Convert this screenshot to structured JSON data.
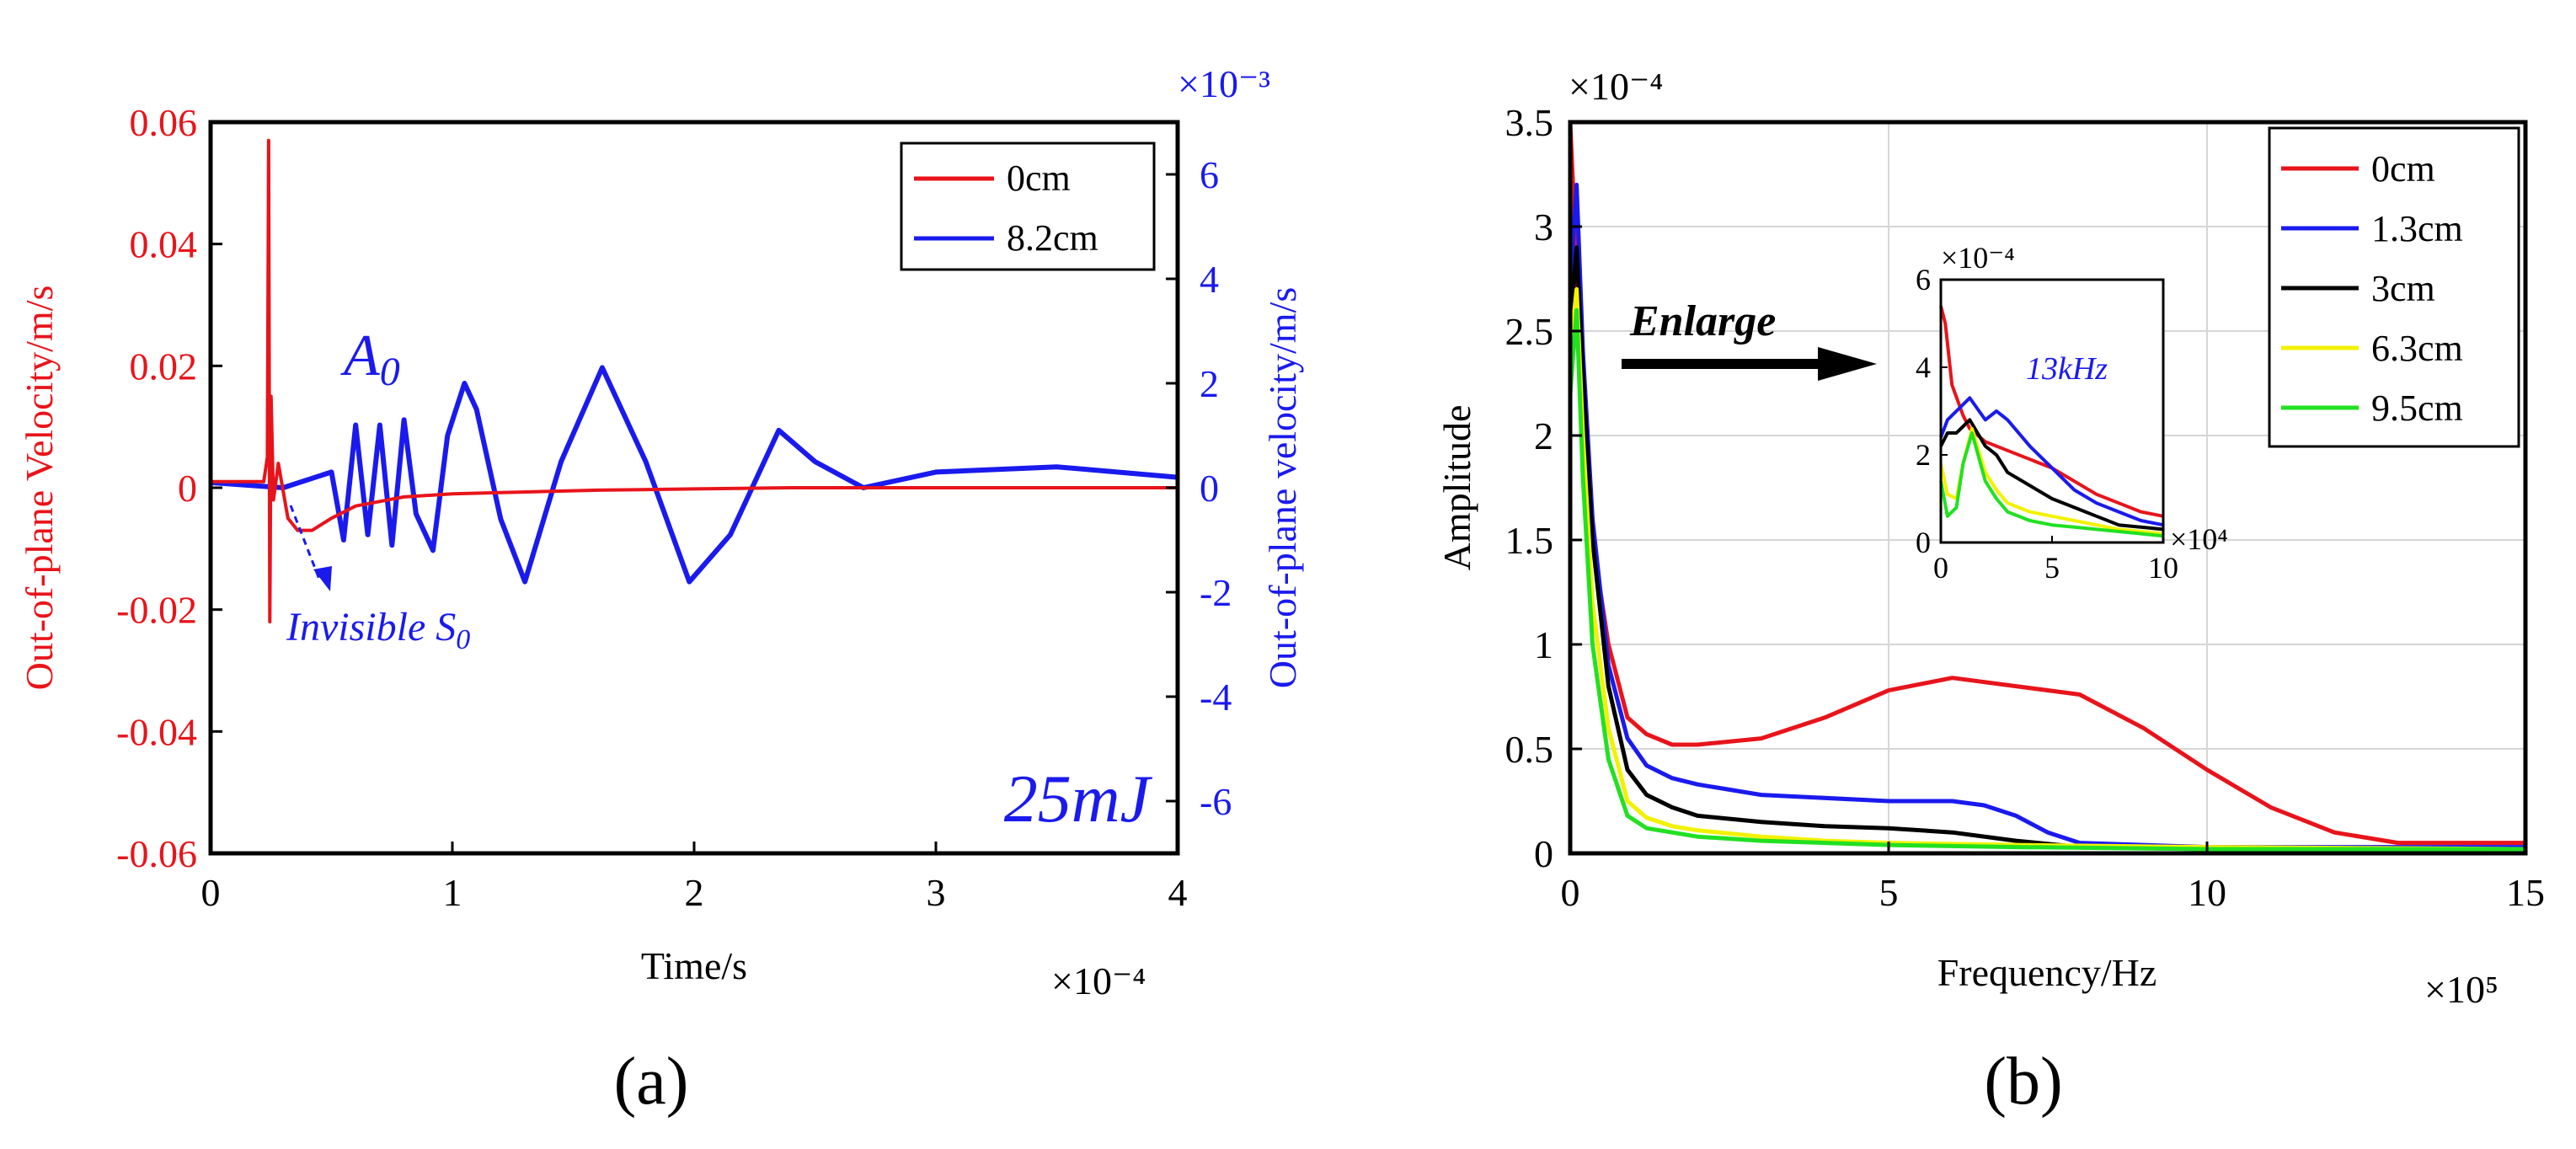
{
  "figure": {
    "panel_a_caption": "(a)",
    "panel_b_caption": "(b)"
  },
  "chart_data": [
    {
      "id": "a",
      "type": "line",
      "xlabel": "Time/s",
      "x_exponent": "×10⁻⁴",
      "xlim": [
        0,
        4
      ],
      "xticks": [
        0,
        1,
        2,
        3,
        4
      ],
      "ylabel_left": "Out-of-plane Velocity/m/s",
      "ylim_left": [
        -0.06,
        0.06
      ],
      "yticks_left": [
        "-0.06",
        "-0.04",
        "-0.02",
        "0",
        "0.02",
        "0.04",
        "0.06"
      ],
      "ylabel_right": "Out-of-plane velocity/m/s",
      "y_right_exponent": "×10⁻³",
      "ylim_right": [
        -7,
        7
      ],
      "yticks_right": [
        -6,
        -4,
        -2,
        0,
        2,
        4,
        6
      ],
      "legend_position": "top-right",
      "colors": {
        "left_axis": "#e8141b",
        "right_axis": "#1a1aee"
      },
      "series": [
        {
          "name": "0cm",
          "color": "#e8141b",
          "axis": "left",
          "x": [
            0,
            0.22,
            0.235,
            0.24,
            0.245,
            0.25,
            0.26,
            0.28,
            0.32,
            0.36,
            0.42,
            0.5,
            0.6,
            0.8,
            1.0,
            1.2,
            1.6,
            2.0,
            2.4,
            3.0,
            4.0
          ],
          "y": [
            0.001,
            0.001,
            0.005,
            0.057,
            -0.022,
            0.015,
            -0.002,
            0.004,
            -0.005,
            -0.007,
            -0.007,
            -0.005,
            -0.003,
            -0.0015,
            -0.001,
            -0.0008,
            -0.0004,
            -0.0002,
            0,
            0,
            0
          ]
        },
        {
          "name": "8.2cm",
          "color": "#1a1aee",
          "axis": "right",
          "x": [
            0,
            0.3,
            0.5,
            0.55,
            0.6,
            0.65,
            0.7,
            0.75,
            0.8,
            0.85,
            0.92,
            0.98,
            1.05,
            1.1,
            1.2,
            1.3,
            1.45,
            1.62,
            1.8,
            1.98,
            2.15,
            2.35,
            2.5,
            2.7,
            3.0,
            3.5,
            4.0
          ],
          "y": [
            0.1,
            0,
            0.3,
            -1.0,
            1.2,
            -0.9,
            1.2,
            -1.1,
            1.3,
            -0.5,
            -1.2,
            1.0,
            2.0,
            1.5,
            -0.6,
            -1.8,
            0.5,
            2.3,
            0.5,
            -1.8,
            -0.9,
            1.1,
            0.5,
            0,
            0.3,
            0.4,
            0.2
          ]
        }
      ],
      "annotations": {
        "mode_a0_label": "A",
        "mode_a0_subscript": "0",
        "invisible_label": "Invisible S",
        "invisible_subscript": "0",
        "energy_label": "25mJ"
      }
    },
    {
      "id": "b",
      "type": "line",
      "xlabel": "Frequency/Hz",
      "x_exponent": "×10⁵",
      "xlim": [
        0,
        15
      ],
      "xticks": [
        0,
        5,
        10,
        15
      ],
      "ylabel": "Amplitude",
      "y_exponent": "×10⁻⁴",
      "ylim": [
        0,
        3.5
      ],
      "yticks": [
        "0",
        "0.5",
        "1",
        "1.5",
        "2",
        "2.5",
        "3",
        "3.5"
      ],
      "grid": true,
      "legend_position": "top-right",
      "series": [
        {
          "name": "0cm",
          "color": "#e8141b",
          "x": [
            0,
            0.1,
            0.2,
            0.35,
            0.6,
            0.9,
            1.2,
            1.6,
            2,
            3,
            4,
            5,
            6,
            7,
            8,
            9,
            10,
            11,
            12,
            13,
            14,
            15
          ],
          "y": [
            3.5,
            2.8,
            2.2,
            1.5,
            1.0,
            0.65,
            0.57,
            0.52,
            0.52,
            0.55,
            0.65,
            0.78,
            0.84,
            0.8,
            0.76,
            0.6,
            0.4,
            0.22,
            0.1,
            0.05,
            0.05,
            0.05
          ]
        },
        {
          "name": "1.3cm",
          "color": "#1a1aee",
          "x": [
            0,
            0.1,
            0.2,
            0.35,
            0.6,
            0.9,
            1.2,
            1.6,
            2,
            3,
            5,
            6,
            6.5,
            7,
            7.5,
            8,
            9,
            10,
            15
          ],
          "y": [
            2.7,
            3.2,
            2.4,
            1.6,
            0.9,
            0.55,
            0.42,
            0.36,
            0.33,
            0.28,
            0.25,
            0.25,
            0.23,
            0.18,
            0.1,
            0.05,
            0.04,
            0.03,
            0.03
          ]
        },
        {
          "name": "3cm",
          "color": "#000000",
          "x": [
            0,
            0.1,
            0.2,
            0.35,
            0.6,
            0.9,
            1.2,
            1.6,
            2,
            3,
            4,
            5,
            6,
            7,
            8,
            10,
            15
          ],
          "y": [
            2.5,
            2.9,
            2.3,
            1.5,
            0.8,
            0.4,
            0.28,
            0.22,
            0.18,
            0.15,
            0.13,
            0.12,
            0.1,
            0.06,
            0.03,
            0.02,
            0.02
          ]
        },
        {
          "name": "6.3cm",
          "color": "#f2f200",
          "x": [
            0,
            0.1,
            0.2,
            0.35,
            0.6,
            0.9,
            1.2,
            1.6,
            2,
            3,
            4,
            5,
            7,
            10,
            15
          ],
          "y": [
            2.4,
            2.7,
            2.0,
            1.2,
            0.6,
            0.25,
            0.17,
            0.13,
            0.11,
            0.08,
            0.06,
            0.05,
            0.04,
            0.03,
            0.02
          ]
        },
        {
          "name": "9.5cm",
          "color": "#22e022",
          "x": [
            0,
            0.1,
            0.2,
            0.35,
            0.6,
            0.9,
            1.2,
            1.6,
            2,
            3,
            4,
            5,
            7,
            10,
            15
          ],
          "y": [
            2.2,
            2.6,
            1.8,
            1.0,
            0.45,
            0.18,
            0.12,
            0.1,
            0.08,
            0.06,
            0.05,
            0.04,
            0.03,
            0.02,
            0.02
          ]
        }
      ],
      "annotations": {
        "enlarge_label": "Enlarge",
        "inset": {
          "y_exponent": "×10⁻⁴",
          "x_exponent": "×10⁴",
          "xlim": [
            0,
            10
          ],
          "xticks": [
            0,
            5,
            10
          ],
          "ylim": [
            0,
            6
          ],
          "yticks": [
            0,
            2,
            4,
            6
          ],
          "peak_label": "13kHz",
          "series": [
            {
              "name": "0cm",
              "color": "#e8141b",
              "x": [
                0,
                0.2,
                0.5,
                1,
                1.3,
                2,
                3,
                4,
                5,
                6,
                7,
                8,
                9,
                10
              ],
              "y": [
                5.4,
                5.0,
                3.6,
                2.9,
                2.6,
                2.3,
                2.1,
                1.9,
                1.7,
                1.4,
                1.1,
                0.9,
                0.7,
                0.6
              ]
            },
            {
              "name": "1.3cm",
              "color": "#1a1aee",
              "x": [
                0,
                0.3,
                0.7,
                1.3,
                2,
                2.5,
                3,
                4,
                5,
                6,
                7,
                8,
                9,
                10
              ],
              "y": [
                2.4,
                2.8,
                3.0,
                3.3,
                2.8,
                3.0,
                2.8,
                2.2,
                1.7,
                1.2,
                0.9,
                0.7,
                0.5,
                0.4
              ]
            },
            {
              "name": "3cm",
              "color": "#000000",
              "x": [
                0,
                0.3,
                0.7,
                1.3,
                2,
                2.5,
                3,
                4,
                5,
                6,
                7,
                8,
                9,
                10
              ],
              "y": [
                2.2,
                2.5,
                2.5,
                2.8,
                2.2,
                2.0,
                1.6,
                1.3,
                1.0,
                0.8,
                0.6,
                0.4,
                0.35,
                0.3
              ]
            },
            {
              "name": "6.3cm",
              "color": "#f2f200",
              "x": [
                0,
                0.3,
                0.7,
                1.0,
                1.4,
                2,
                2.5,
                3,
                4,
                5,
                6,
                7,
                8,
                9,
                10
              ],
              "y": [
                1.8,
                1.1,
                1.0,
                1.8,
                2.6,
                1.6,
                1.2,
                0.9,
                0.7,
                0.6,
                0.5,
                0.4,
                0.3,
                0.25,
                0.2
              ]
            },
            {
              "name": "9.5cm",
              "color": "#22e022",
              "x": [
                0,
                0.3,
                0.7,
                1.0,
                1.4,
                2,
                2.5,
                3,
                4,
                5,
                6,
                7,
                8,
                9,
                10
              ],
              "y": [
                1.4,
                0.6,
                0.8,
                1.8,
                2.5,
                1.4,
                1.0,
                0.7,
                0.5,
                0.4,
                0.35,
                0.3,
                0.25,
                0.2,
                0.15
              ]
            }
          ]
        }
      }
    }
  ]
}
